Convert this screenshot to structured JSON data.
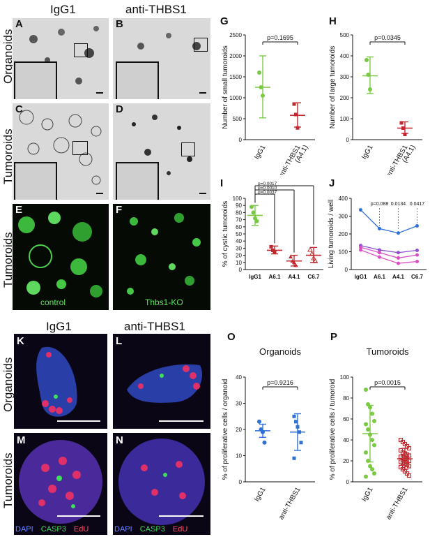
{
  "panels": {
    "A": "A",
    "B": "B",
    "C": "C",
    "D": "D",
    "E": "E",
    "F": "F",
    "G": "G",
    "H": "H",
    "I": "I",
    "J": "J",
    "K": "K",
    "L": "L",
    "M": "M",
    "N": "N",
    "O": "O",
    "P": "P"
  },
  "top": {
    "col1": "IgG1",
    "col2": "anti-THBS1",
    "row1": "Organoids",
    "row2": "Tumoroids",
    "row3": "Tumoroids",
    "e_caption": "control",
    "f_caption": "Thbs1-KO"
  },
  "bottom": {
    "col1": "IgG1",
    "col2": "anti-THBS1",
    "row1": "Organoids",
    "row2": "Tumoroids",
    "legend_m": {
      "dapi": "DAPI",
      "casp3": "CASP3",
      "edu": "EdU"
    },
    "legend_n": {
      "dapi": "DAPI",
      "casp3": "CASP3",
      "edu": "EdU"
    }
  },
  "colors": {
    "igg1_green": "#7ac943",
    "treat_red": "#c0282d",
    "blue": "#2f6fd6",
    "violet": "#8b4fcf",
    "magenta": "#d94fc1",
    "navy": "#3a3ad6"
  },
  "chart_data": [
    {
      "panel": "G",
      "type": "scatter",
      "ylabel": "Number of small tumoroids",
      "categories": [
        "IgG1",
        "anti-THBS1\n(A4.1)"
      ],
      "ylim": [
        0,
        2500
      ],
      "yticks": [
        0,
        500,
        1000,
        1500,
        2000,
        2500
      ],
      "series": [
        {
          "category": "IgG1",
          "points": [
            1600,
            1250,
            1050
          ],
          "mean": 1250,
          "sd_low": 520,
          "sd_high": 2000
        },
        {
          "category": "anti-THBS1 (A4.1)",
          "points": [
            850,
            600,
            280
          ],
          "mean": 580,
          "sd_low": 300,
          "sd_high": 880
        }
      ],
      "annotation": "p=0.1695"
    },
    {
      "panel": "H",
      "type": "scatter",
      "ylabel": "Number of large tumoroids",
      "categories": [
        "IgG1",
        "anti-THBS1\n(A4.1)"
      ],
      "ylim": [
        0,
        500
      ],
      "yticks": [
        0,
        100,
        200,
        300,
        400,
        500
      ],
      "series": [
        {
          "category": "IgG1",
          "points": [
            380,
            310,
            240
          ],
          "mean": 305,
          "sd_low": 220,
          "sd_high": 395
        },
        {
          "category": "anti-THBS1 (A4.1)",
          "points": [
            80,
            55,
            25
          ],
          "mean": 55,
          "sd_low": 30,
          "sd_high": 85
        }
      ],
      "annotation": "p=0.0345"
    },
    {
      "panel": "I",
      "type": "scatter",
      "ylabel": "% of cystic tumoroids",
      "categories": [
        "IgG1",
        "A6.1",
        "A4.1",
        "C6.7"
      ],
      "ylim": [
        0,
        100
      ],
      "yticks": [
        0,
        10,
        20,
        30,
        40,
        50,
        60,
        70,
        80,
        90,
        100
      ],
      "series": [
        {
          "category": "IgG1",
          "points": [
            88,
            80,
            72,
            68
          ],
          "mean": 76,
          "sd_low": 62,
          "sd_high": 90
        },
        {
          "category": "A6.1",
          "points": [
            32,
            27,
            24
          ],
          "mean": 27,
          "sd_low": 22,
          "sd_high": 33
        },
        {
          "category": "A4.1",
          "points": [
            18,
            12,
            10,
            6
          ],
          "mean": 12,
          "sd_low": 5,
          "sd_high": 20
        },
        {
          "category": "C6.7",
          "points": [
            28,
            22,
            16,
            12
          ],
          "mean": 20,
          "sd_low": 10,
          "sd_high": 31
        }
      ],
      "annotations": [
        "p=0.0037",
        "p=0.0010",
        "p=0.0017"
      ]
    },
    {
      "panel": "J",
      "type": "line",
      "ylabel": "Living tumoroids / well",
      "categories": [
        "IgG1",
        "A6.1",
        "A4.1",
        "C6.7"
      ],
      "ylim": [
        0,
        400
      ],
      "yticks": [
        0,
        100,
        200,
        300,
        400
      ],
      "series": [
        {
          "color": "#2f6fd6",
          "values": [
            335,
            230,
            205,
            245
          ]
        },
        {
          "color": "#8b4fcf",
          "values": [
            135,
            110,
            95,
            108
          ]
        },
        {
          "color": "#d94fc1",
          "values": [
            125,
            95,
            65,
            82
          ]
        },
        {
          "color": "#d94fc1",
          "values": [
            110,
            70,
            35,
            45
          ]
        }
      ],
      "annotations": [
        "p=0.088",
        "0.0134",
        "0.0417"
      ]
    },
    {
      "panel": "O",
      "type": "scatter",
      "title": "Organoids",
      "ylabel": "% of proliferative cells / organoid",
      "categories": [
        "IgG1",
        "anti-THBS1"
      ],
      "ylim": [
        0,
        40
      ],
      "yticks": [
        0,
        10,
        20,
        30,
        40
      ],
      "series": [
        {
          "category": "IgG1",
          "points": [
            23,
            20,
            19,
            15
          ],
          "mean": 19.5,
          "sd_low": 17,
          "sd_high": 22
        },
        {
          "category": "anti-THBS1",
          "points": [
            25,
            23,
            21,
            19,
            15,
            9
          ],
          "mean": 19,
          "sd_low": 12,
          "sd_high": 26
        }
      ],
      "annotation": "p=0.9216"
    },
    {
      "panel": "P",
      "type": "scatter",
      "title": "Tumoroids",
      "ylabel": "% of proliferative cells / tumoroid",
      "categories": [
        "IgG1",
        "anti-THBS1"
      ],
      "ylim": [
        0,
        100
      ],
      "yticks": [
        0,
        20,
        40,
        60,
        80,
        100
      ],
      "series": [
        {
          "category": "IgG1",
          "points": [
            88,
            74,
            71,
            65,
            58,
            55,
            50,
            45,
            40,
            35,
            28,
            20,
            15,
            12,
            8,
            5
          ],
          "mean": 46,
          "sd_low": 19,
          "sd_high": 73
        },
        {
          "category": "anti-THBS1",
          "points": [
            40,
            38,
            36,
            34,
            32,
            30,
            28,
            27,
            26,
            25,
            24,
            23,
            22,
            21,
            20,
            19,
            18,
            17,
            16,
            15,
            14,
            12,
            10,
            8,
            6
          ],
          "mean": 22,
          "sd_low": 12,
          "sd_high": 32
        }
      ],
      "annotation": "p=0.0015"
    }
  ]
}
